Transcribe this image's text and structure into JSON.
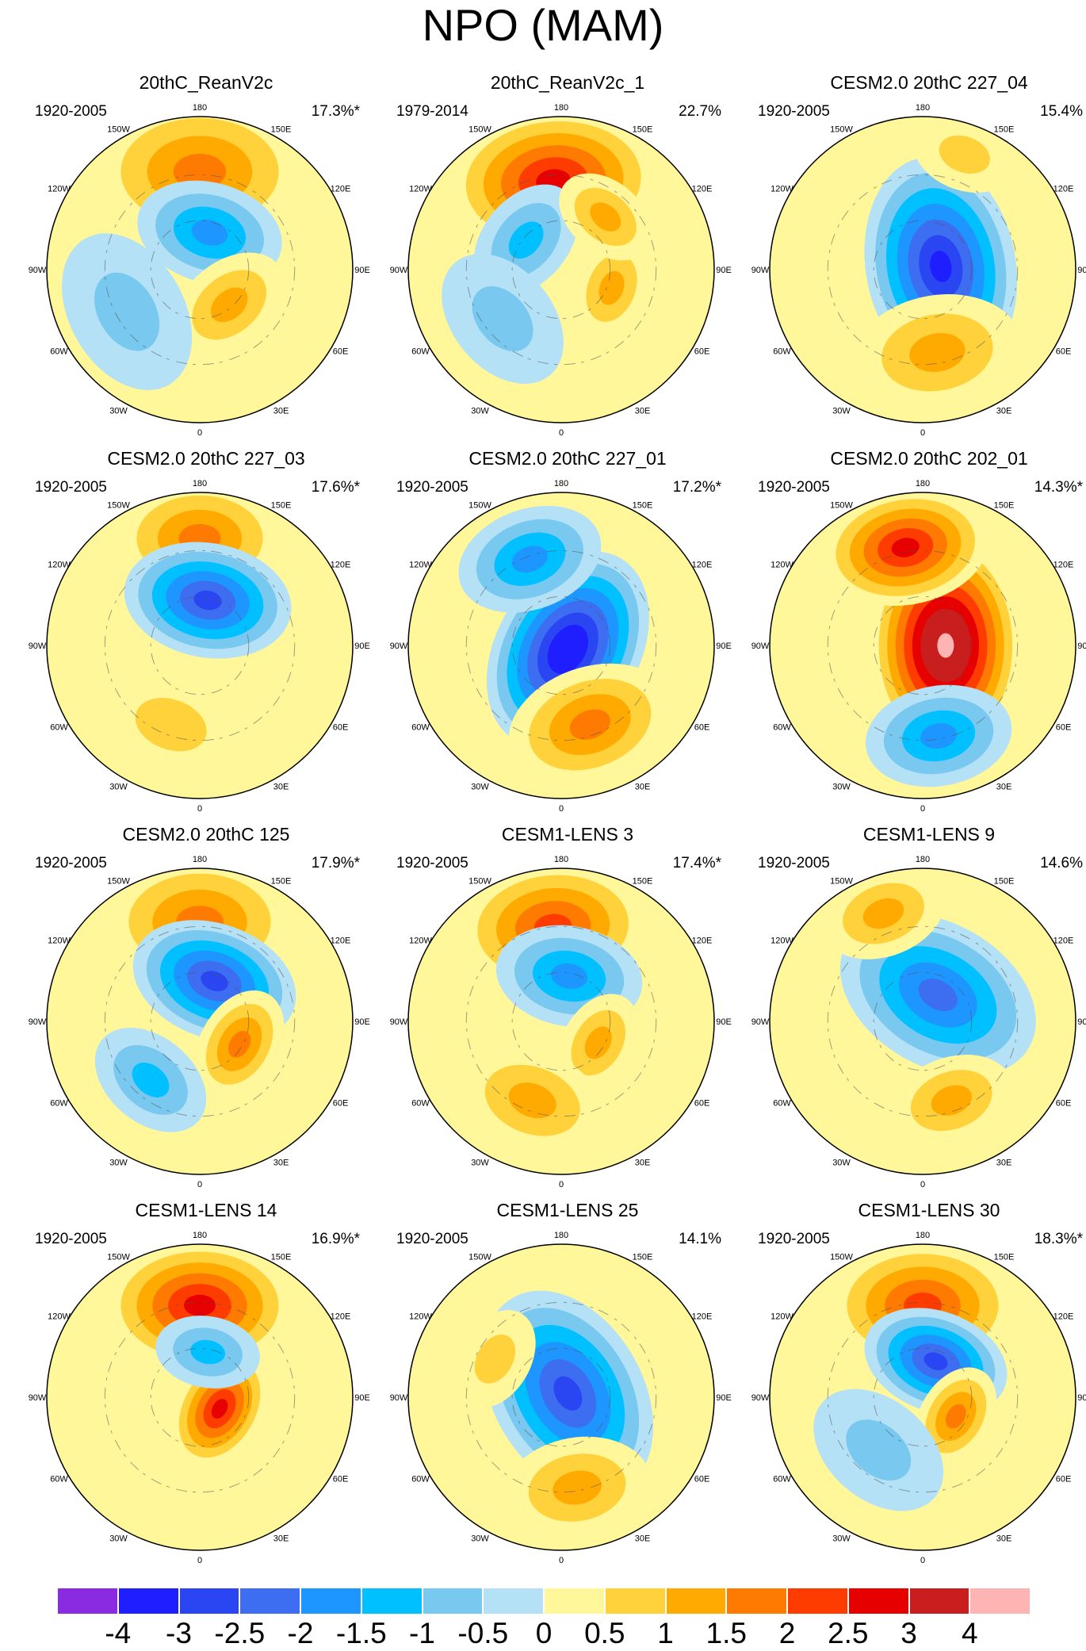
{
  "title": "NPO (MAM)",
  "chart_data": {
    "type": "polar-contour-map",
    "title": "NPO (MAM)",
    "projection": "north polar stereographic",
    "longitude_labels": [
      "180",
      "150W",
      "150E",
      "120W",
      "120E",
      "90W",
      "90E",
      "60W",
      "60E",
      "30W",
      "30E",
      "0"
    ],
    "colorbar": {
      "levels": [
        "-4",
        "-3",
        "-2.5",
        "-2",
        "-1.5",
        "-1",
        "-0.5",
        "0",
        "0.5",
        "1",
        "1.5",
        "2",
        "2.5",
        "3",
        "4"
      ],
      "colors": [
        "#8a2be2",
        "#1e1eff",
        "#2a45f2",
        "#3d6df0",
        "#1e96ff",
        "#00c0ff",
        "#78c8f0",
        "#b4e1f5",
        "#fff79a",
        "#ffd23c",
        "#ffaa00",
        "#ff7a00",
        "#ff3c00",
        "#e60000",
        "#c81e1e",
        "#ffb4b4"
      ]
    },
    "panels": [
      {
        "title": "20thC_ReanV2c",
        "period": "1920-2005",
        "variance": "17.3%*",
        "features": [
          {
            "lon": 180,
            "r": 0.64,
            "value": 1.8,
            "size": 1.0
          },
          {
            "lon": 165,
            "r": 0.25,
            "value": -2.0,
            "size": 0.7
          },
          {
            "lon": 40,
            "r": 0.3,
            "value": 1.2,
            "size": 0.6
          },
          {
            "lon": -60,
            "r": 0.55,
            "value": -0.7,
            "size": 0.8
          }
        ]
      },
      {
        "title": "20thC_ReanV2c_1",
        "period": "1979-2014",
        "variance": "22.7%",
        "features": [
          {
            "lon": -175,
            "r": 0.58,
            "value": 2.7,
            "size": 1.0
          },
          {
            "lon": -130,
            "r": 0.3,
            "value": -1.2,
            "size": 0.6
          },
          {
            "lon": 70,
            "r": 0.35,
            "value": 1.1,
            "size": 0.5
          },
          {
            "lon": 140,
            "r": 0.45,
            "value": 1.1,
            "size": 0.5
          },
          {
            "lon": -50,
            "r": 0.5,
            "value": -0.7,
            "size": 0.7
          }
        ]
      },
      {
        "title": "CESM2.0 20thC 227_04",
        "period": "1920-2005",
        "variance": "15.4%",
        "features": [
          {
            "lon": 100,
            "r": 0.12,
            "value": -3.2,
            "size": 1.05
          },
          {
            "lon": 10,
            "r": 0.55,
            "value": 1.2,
            "size": 0.8
          },
          {
            "lon": 160,
            "r": 0.8,
            "value": 0.7,
            "size": 0.5
          }
        ]
      },
      {
        "title": "CESM2.0 20thC 227_03",
        "period": "1920-2005",
        "variance": "17.6%*",
        "features": [
          {
            "lon": 180,
            "r": 0.7,
            "value": 1.6,
            "size": 0.8
          },
          {
            "lon": 170,
            "r": 0.3,
            "value": -3.0,
            "size": 0.8
          },
          {
            "lon": -20,
            "r": 0.55,
            "value": 0.7,
            "size": 0.7
          }
        ]
      },
      {
        "title": "CESM2.0 20thC 227_01",
        "period": "1920-2005",
        "variance": "17.2%*",
        "features": [
          {
            "lon": 60,
            "r": 0.05,
            "value": -3.7,
            "size": 1.0
          },
          {
            "lon": -160,
            "r": 0.6,
            "value": -1.6,
            "size": 0.7
          },
          {
            "lon": 20,
            "r": 0.55,
            "value": 1.7,
            "size": 0.8
          }
        ]
      },
      {
        "title": "CESM2.0 20thC 202_01",
        "period": "1920-2005",
        "variance": "14.3%*",
        "features": [
          {
            "lon": 90,
            "r": 0.15,
            "value": 4.2,
            "size": 1.05
          },
          {
            "lon": -170,
            "r": 0.65,
            "value": 2.6,
            "size": 0.8
          },
          {
            "lon": 10,
            "r": 0.6,
            "value": -1.6,
            "size": 0.7
          }
        ]
      },
      {
        "title": "CESM2.0 20thC 125",
        "period": "1920-2005",
        "variance": "17.9%*",
        "features": [
          {
            "lon": 180,
            "r": 0.65,
            "value": 2.0,
            "size": 0.9
          },
          {
            "lon": 160,
            "r": 0.28,
            "value": -3.0,
            "size": 0.8
          },
          {
            "lon": 60,
            "r": 0.3,
            "value": 1.8,
            "size": 0.55
          },
          {
            "lon": -40,
            "r": 0.5,
            "value": -1.2,
            "size": 0.6
          }
        ]
      },
      {
        "title": "CESM1-LENS 3",
        "period": "1920-2005",
        "variance": "17.4%*",
        "features": [
          {
            "lon": -175,
            "r": 0.62,
            "value": 2.3,
            "size": 0.9
          },
          {
            "lon": 170,
            "r": 0.3,
            "value": -2.0,
            "size": 0.7
          },
          {
            "lon": 60,
            "r": 0.28,
            "value": 1.4,
            "size": 0.5
          },
          {
            "lon": -20,
            "r": 0.55,
            "value": 1.2,
            "size": 0.7
          }
        ]
      },
      {
        "title": "CESM1-LENS 9",
        "period": "1920-2005",
        "variance": "14.6%",
        "features": [
          {
            "lon": 150,
            "r": 0.2,
            "value": -2.2,
            "size": 1.0
          },
          {
            "lon": -160,
            "r": 0.75,
            "value": 1.2,
            "size": 0.6
          },
          {
            "lon": 20,
            "r": 0.55,
            "value": 1.2,
            "size": 0.6
          }
        ]
      },
      {
        "title": "CESM1-LENS 14",
        "period": "1920-2005",
        "variance": "16.9%*",
        "features": [
          {
            "lon": 180,
            "r": 0.6,
            "value": 2.8,
            "size": 0.9
          },
          {
            "lon": 60,
            "r": 0.15,
            "value": 3.0,
            "size": 0.6
          },
          {
            "lon": 170,
            "r": 0.3,
            "value": -1.5,
            "size": 0.5
          }
        ]
      },
      {
        "title": "CESM1-LENS 25",
        "period": "1920-2005",
        "variance": "14.1%",
        "features": [
          {
            "lon": 120,
            "r": 0.05,
            "value": -3.0,
            "size": 1.05
          },
          {
            "lon": 10,
            "r": 0.6,
            "value": 1.2,
            "size": 0.7
          },
          {
            "lon": -120,
            "r": 0.5,
            "value": 0.7,
            "size": 0.5
          }
        ]
      },
      {
        "title": "CESM1-LENS 30",
        "period": "1920-2005",
        "variance": "18.3%*",
        "features": [
          {
            "lon": 180,
            "r": 0.6,
            "value": 2.3,
            "size": 0.9
          },
          {
            "lon": 160,
            "r": 0.25,
            "value": -2.8,
            "size": 0.7
          },
          {
            "lon": 60,
            "r": 0.25,
            "value": 1.6,
            "size": 0.5
          },
          {
            "lon": -40,
            "r": 0.45,
            "value": -0.8,
            "size": 0.7
          }
        ]
      }
    ]
  }
}
